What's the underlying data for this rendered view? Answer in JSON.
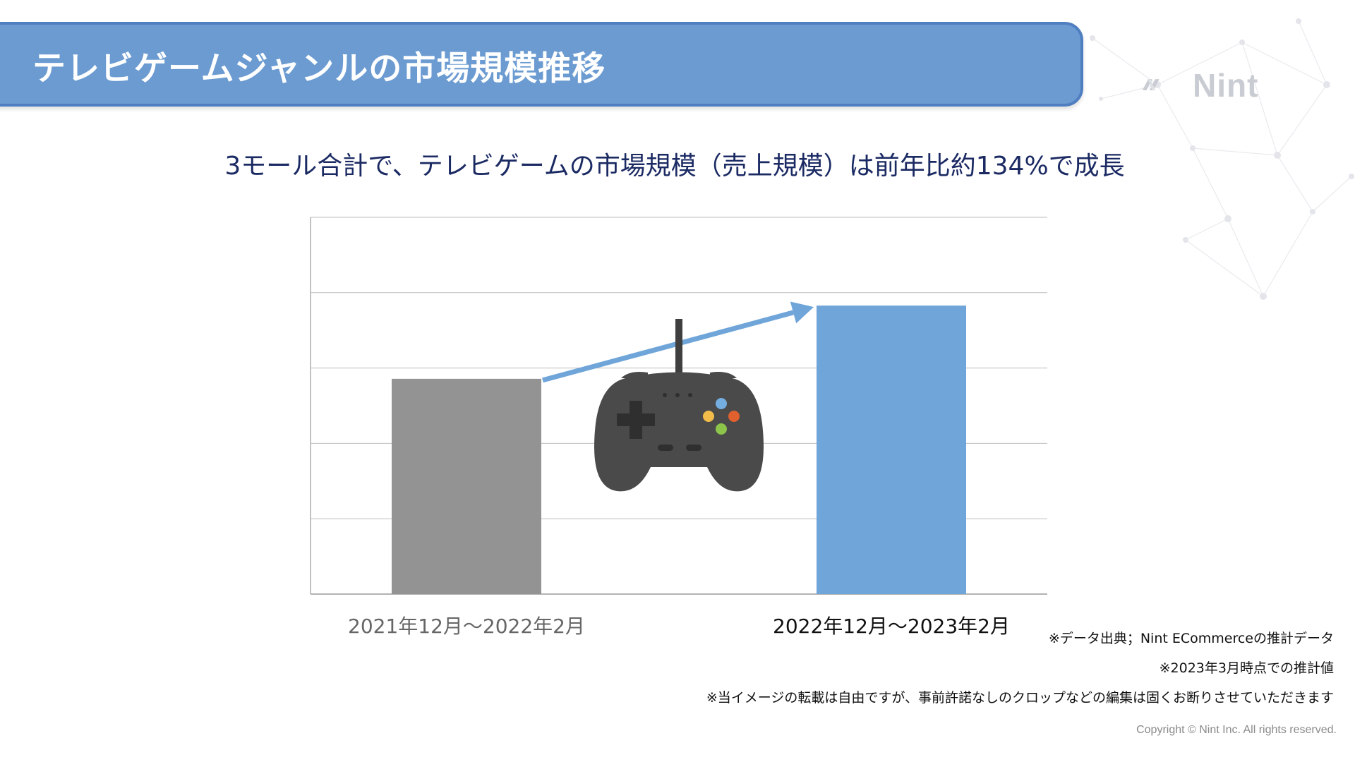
{
  "header": {
    "title": "テレビゲームジャンルの市場規模推移"
  },
  "logo": {
    "text": "Nint",
    "icon": "nint-logo-icon"
  },
  "subtitle": "3モール合計で、テレビゲームの市場規模（売上規模）は前年比約134%で成長",
  "chart_data": {
    "type": "bar",
    "categories": [
      "2021年12月～2022年2月",
      "2022年12月～2023年2月"
    ],
    "values": [
      100,
      134
    ],
    "value_unit": "index (previous year = 100)",
    "growth_text": "約134%",
    "ylim": [
      0,
      175
    ],
    "y_gridlines": 4,
    "y_tick_labels": "none shown",
    "grid": true,
    "bar_colors": [
      "#939393",
      "#6fa5d8"
    ],
    "arrow_color": "#6fa5d8",
    "category_label_colors": [
      "#666666",
      "#111111"
    ],
    "decoration": "gamepad-icon"
  },
  "notes": [
    "※データ出典；Nint ECommerceの推計データ",
    "※2023年3月時点での推計値",
    "※当イメージの転載は自由ですが、事前許諾なしのクロップなどの編集は固くお断りさせていただきます"
  ],
  "copyright": "Copyright © Nint Inc. All rights reserved."
}
